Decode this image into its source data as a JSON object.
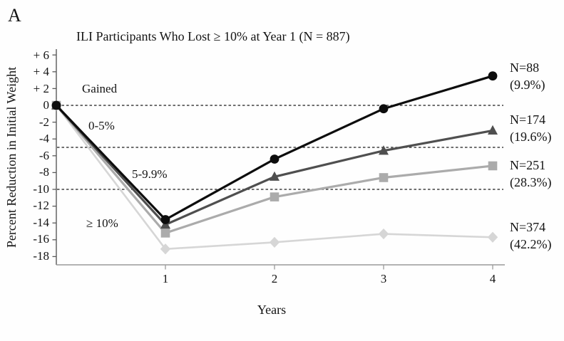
{
  "panel_label": "A",
  "chart_data": {
    "type": "line",
    "title": "ILI Participants Who Lost ≥ 10% at Year 1 (N = 887)",
    "xlabel": "Years",
    "ylabel": "Percent Reduction in Initial Weight",
    "x": [
      0,
      1,
      2,
      3,
      4
    ],
    "x_tick_labels": [
      "1",
      "2",
      "3",
      "4"
    ],
    "y_ticks": [
      6,
      4,
      2,
      0,
      -2,
      -4,
      -6,
      -8,
      -10,
      -12,
      -14,
      -16,
      -18
    ],
    "y_tick_labels": [
      "+ 6",
      "+ 4",
      "+ 2",
      "0",
      "-2",
      "-4",
      "-6",
      "-8",
      "-10",
      "-12",
      "-14",
      "-16",
      "-18"
    ],
    "ylim": [
      -19.2,
      7
    ],
    "reference_lines": [
      0,
      -5,
      -10
    ],
    "grid": "horizontal dashed lines at 0, -5 and -10 only",
    "legend_position": "right-of-plot annotations",
    "series": [
      {
        "name": "Gained",
        "region_label": "Gained",
        "marker": "circle",
        "color": "#0d0d0d",
        "values": [
          0,
          -13.6,
          -6.4,
          -0.4,
          3.5
        ],
        "annotation_line1": "N=88",
        "annotation_line2": "(9.9%)"
      },
      {
        "name": "0-5%",
        "region_label": "0-5%",
        "marker": "triangle",
        "color": "#4f4f4f",
        "values": [
          0,
          -14.2,
          -8.5,
          -5.4,
          -3.0
        ],
        "annotation_line1": "N=174",
        "annotation_line2": "(19.6%)"
      },
      {
        "name": "5-9.9%",
        "region_label": "5-9.9%",
        "marker": "square",
        "color": "#ababab",
        "values": [
          0,
          -15.2,
          -10.9,
          -8.6,
          -7.2
        ],
        "annotation_line1": "N=251",
        "annotation_line2": "(28.3%)"
      },
      {
        "name": "≥ 10%",
        "region_label": "≥ 10%",
        "marker": "diamond",
        "color": "#d6d6d6",
        "values": [
          0,
          -17.1,
          -16.3,
          -15.3,
          -15.7
        ],
        "annotation_line1": "N=374",
        "annotation_line2": "(42.2%)"
      }
    ]
  }
}
